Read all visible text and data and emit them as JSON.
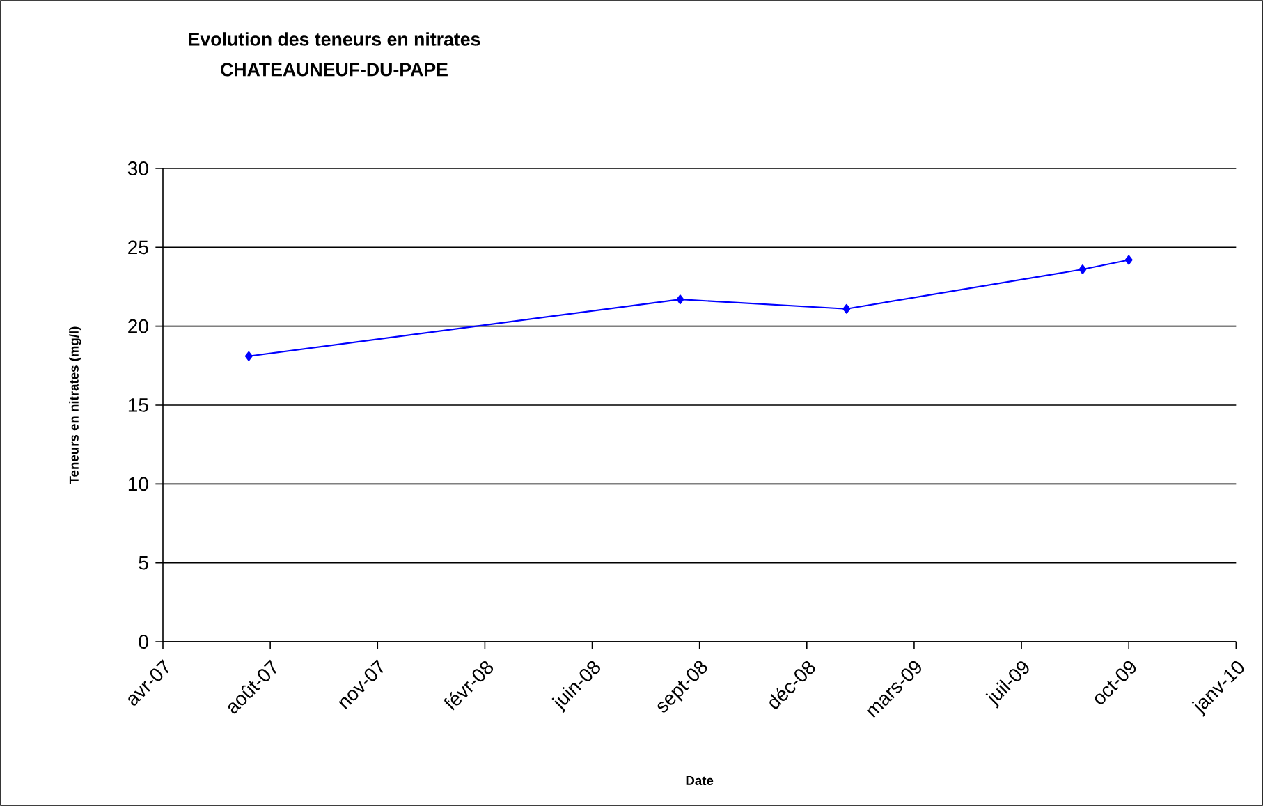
{
  "chart_data": {
    "type": "line",
    "title": "Evolution des teneurs en nitrates",
    "subtitle": "CHATEAUNEUF-DU-PAPE",
    "xlabel": "Date",
    "ylabel": "Teneurs en nitrates (mg/l)",
    "series": [
      {
        "color": "#0000ff",
        "x": [
          "2007-07-19",
          "2008-08-24",
          "2009-01-26",
          "2009-09-03",
          "2009-10-16"
        ],
        "values": [
          18.1,
          21.7,
          21.1,
          23.6,
          24.2
        ]
      }
    ],
    "xlim": [
      "2007-04-30",
      "2010-01-24"
    ],
    "xticks": [
      {
        "value": "2007-04-30",
        "label": "avr-07"
      },
      {
        "value": "2007-08-08",
        "label": "août-07"
      },
      {
        "value": "2007-11-16",
        "label": "nov-07"
      },
      {
        "value": "2008-02-24",
        "label": "févr-08"
      },
      {
        "value": "2008-06-03",
        "label": "juin-08"
      },
      {
        "value": "2008-09-11",
        "label": "sept-08"
      },
      {
        "value": "2008-12-20",
        "label": "déc-08"
      },
      {
        "value": "2009-03-30",
        "label": "mars-09"
      },
      {
        "value": "2009-07-08",
        "label": "juil-09"
      },
      {
        "value": "2009-10-16",
        "label": "oct-09"
      },
      {
        "value": "2010-01-24",
        "label": "janv-10"
      }
    ],
    "ylim": [
      0,
      30
    ],
    "yticks": [
      0,
      5,
      10,
      15,
      20,
      25,
      30
    ],
    "grid": "y",
    "marker": "diamond",
    "line_style": "solid"
  }
}
